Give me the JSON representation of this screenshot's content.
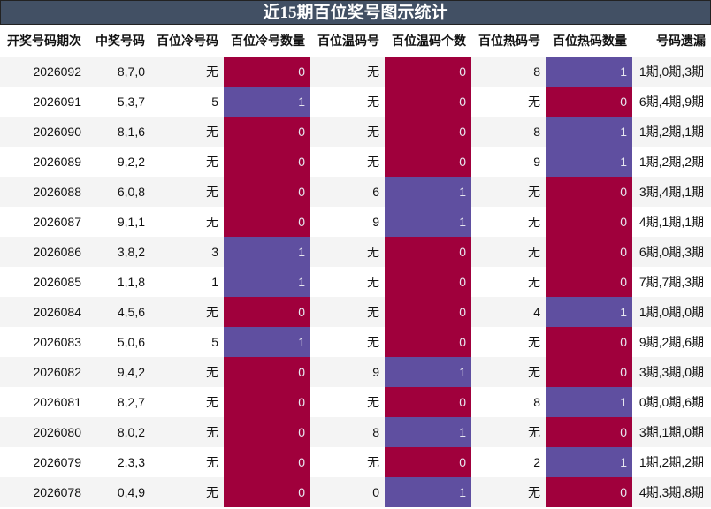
{
  "title": "近15期百位奖号图示统计",
  "colors": {
    "zero": "#a0003c",
    "one": "#5f4fa0",
    "title_bg": "#425064"
  },
  "headers": [
    "开奖号码期次",
    "中奖号码",
    "百位冷号码",
    "百位冷号数量",
    "百位温码号",
    "百位温码个数",
    "百位热码号",
    "百位热码数量",
    "号码遗漏"
  ],
  "rows": [
    [
      "2026092",
      "8,7,0",
      "无",
      "0",
      "无",
      "0",
      "8",
      "1",
      "1期,0期,3期"
    ],
    [
      "2026091",
      "5,3,7",
      "5",
      "1",
      "无",
      "0",
      "无",
      "0",
      "6期,4期,9期"
    ],
    [
      "2026090",
      "8,1,6",
      "无",
      "0",
      "无",
      "0",
      "8",
      "1",
      "1期,2期,1期"
    ],
    [
      "2026089",
      "9,2,2",
      "无",
      "0",
      "无",
      "0",
      "9",
      "1",
      "1期,2期,2期"
    ],
    [
      "2026088",
      "6,0,8",
      "无",
      "0",
      "6",
      "1",
      "无",
      "0",
      "3期,4期,1期"
    ],
    [
      "2026087",
      "9,1,1",
      "无",
      "0",
      "9",
      "1",
      "无",
      "0",
      "4期,1期,1期"
    ],
    [
      "2026086",
      "3,8,2",
      "3",
      "1",
      "无",
      "0",
      "无",
      "0",
      "6期,0期,3期"
    ],
    [
      "2026085",
      "1,1,8",
      "1",
      "1",
      "无",
      "0",
      "无",
      "0",
      "7期,7期,3期"
    ],
    [
      "2026084",
      "4,5,6",
      "无",
      "0",
      "无",
      "0",
      "4",
      "1",
      "1期,0期,0期"
    ],
    [
      "2026083",
      "5,0,6",
      "5",
      "1",
      "无",
      "0",
      "无",
      "0",
      "9期,2期,6期"
    ],
    [
      "2026082",
      "9,4,2",
      "无",
      "0",
      "9",
      "1",
      "无",
      "0",
      "3期,3期,0期"
    ],
    [
      "2026081",
      "8,2,7",
      "无",
      "0",
      "无",
      "0",
      "8",
      "1",
      "0期,0期,6期"
    ],
    [
      "2026080",
      "8,0,2",
      "无",
      "0",
      "8",
      "1",
      "无",
      "0",
      "3期,1期,0期"
    ],
    [
      "2026079",
      "2,3,3",
      "无",
      "0",
      "无",
      "0",
      "2",
      "1",
      "1期,2期,2期"
    ],
    [
      "2026078",
      "0,4,9",
      "无",
      "0",
      "0",
      "1",
      "无",
      "0",
      "4期,3期,8期"
    ]
  ]
}
